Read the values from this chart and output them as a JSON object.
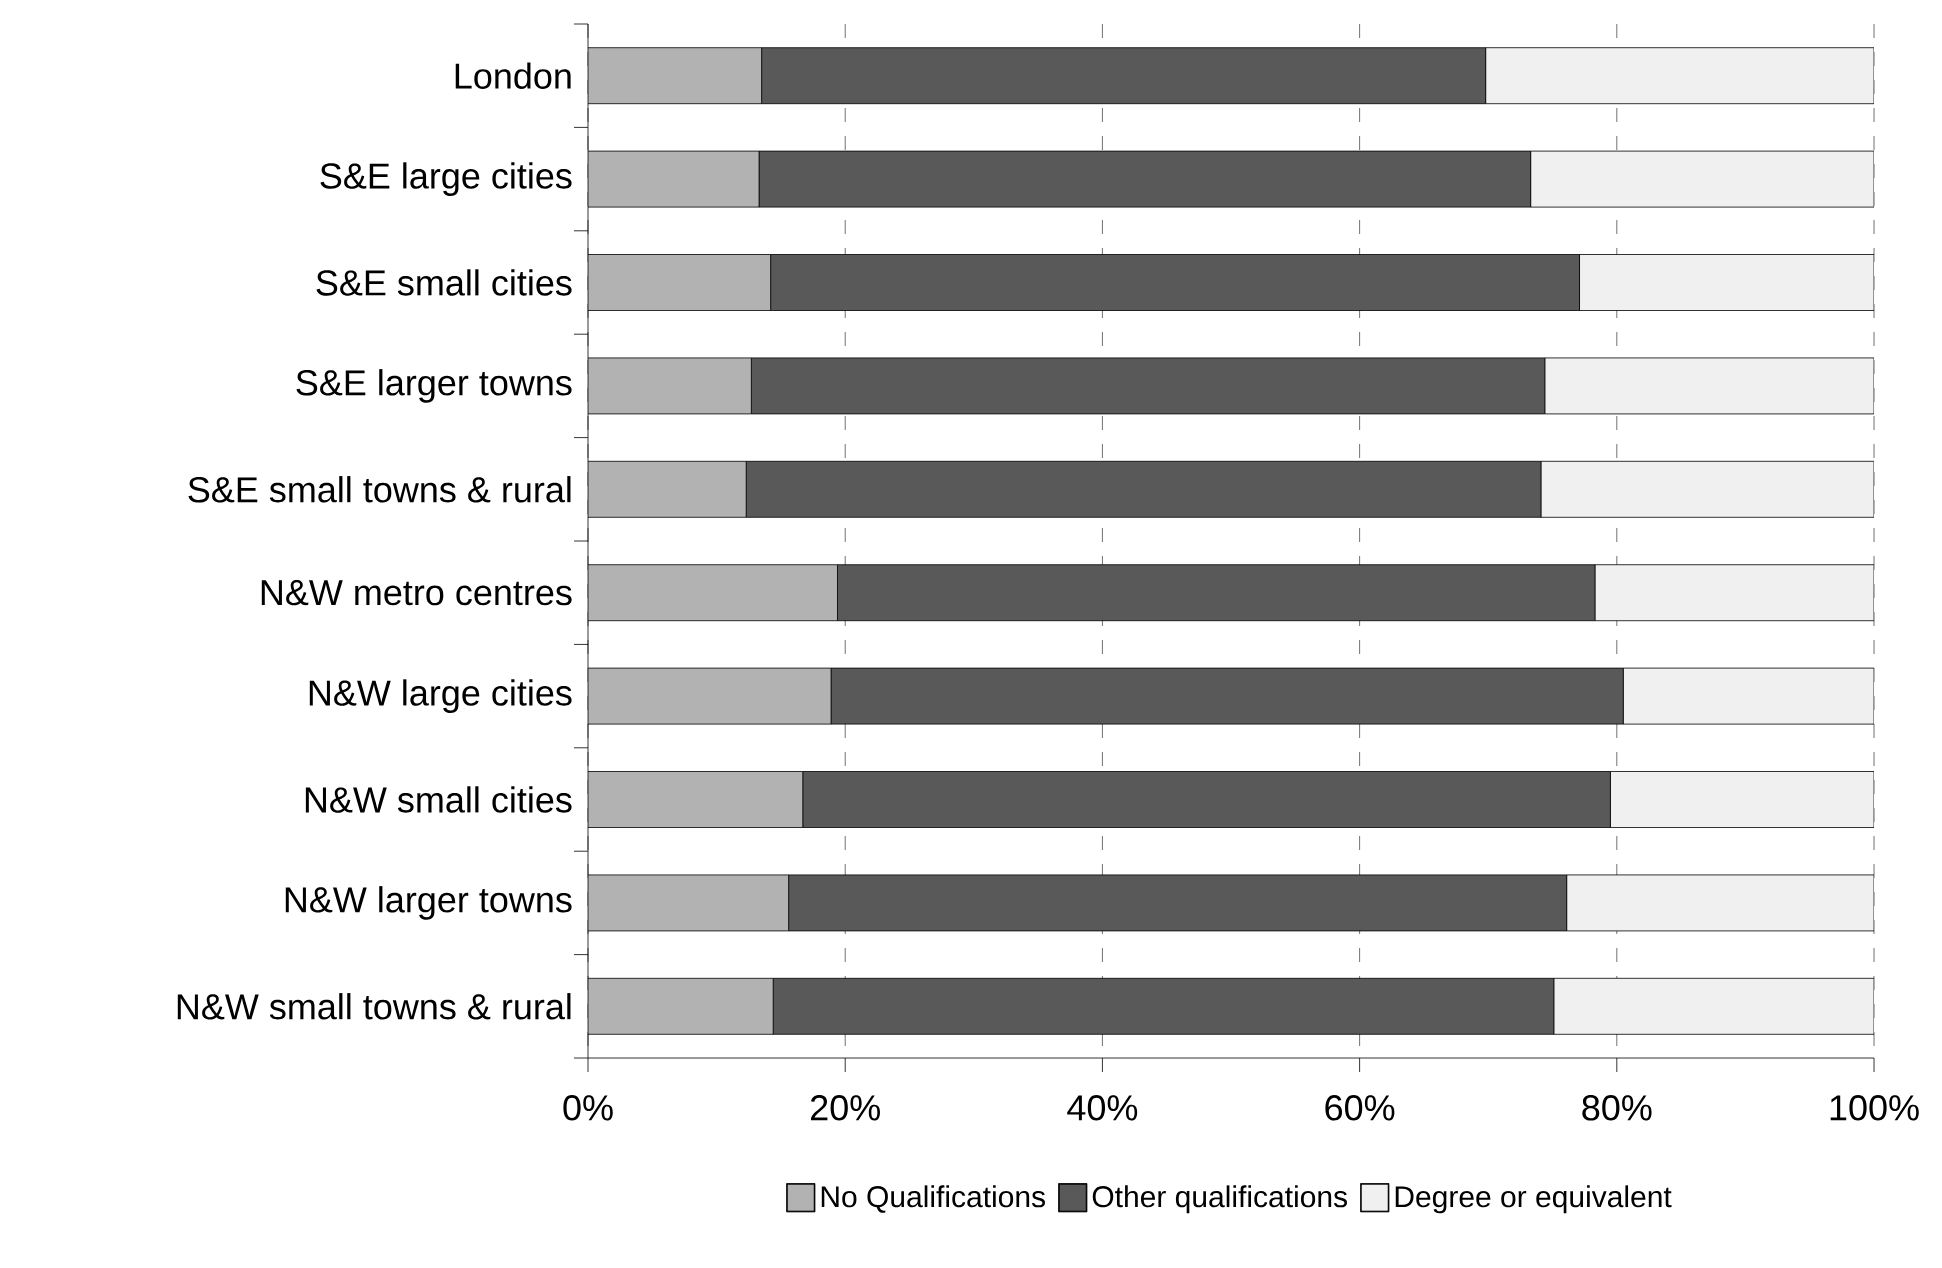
{
  "chart_data": {
    "type": "bar",
    "orientation": "horizontal",
    "stacked": true,
    "categories": [
      "London",
      "S&E large cities",
      "S&E small cities",
      "S&E larger towns",
      "S&E small towns & rural",
      "N&W metro centres",
      "N&W large cities",
      "N&W small cities",
      "N&W larger towns",
      "N&W small towns & rural"
    ],
    "series": [
      {
        "name": "No Qualifications",
        "color": "#b2b2b2",
        "values": [
          13.5,
          13.3,
          14.2,
          12.7,
          12.3,
          19.4,
          18.9,
          16.7,
          15.6,
          14.4
        ]
      },
      {
        "name": "Other qualifications",
        "color": "#595959",
        "values": [
          56.3,
          60.0,
          62.9,
          61.7,
          61.8,
          58.9,
          61.6,
          62.8,
          60.5,
          60.7
        ]
      },
      {
        "name": "Degree or equivalent",
        "color": "#f0f0f0",
        "values": [
          30.2,
          26.7,
          22.9,
          25.6,
          25.9,
          21.7,
          19.5,
          20.5,
          23.9,
          24.9
        ]
      }
    ],
    "xlim": [
      0,
      100
    ],
    "xticks": [
      {
        "value": 0,
        "label": "0%"
      },
      {
        "value": 20,
        "label": "20%"
      },
      {
        "value": 40,
        "label": "40%"
      },
      {
        "value": 60,
        "label": "60%"
      },
      {
        "value": 80,
        "label": "80%"
      },
      {
        "value": 100,
        "label": "100%"
      }
    ],
    "grid": "x",
    "legend": "bottom"
  }
}
